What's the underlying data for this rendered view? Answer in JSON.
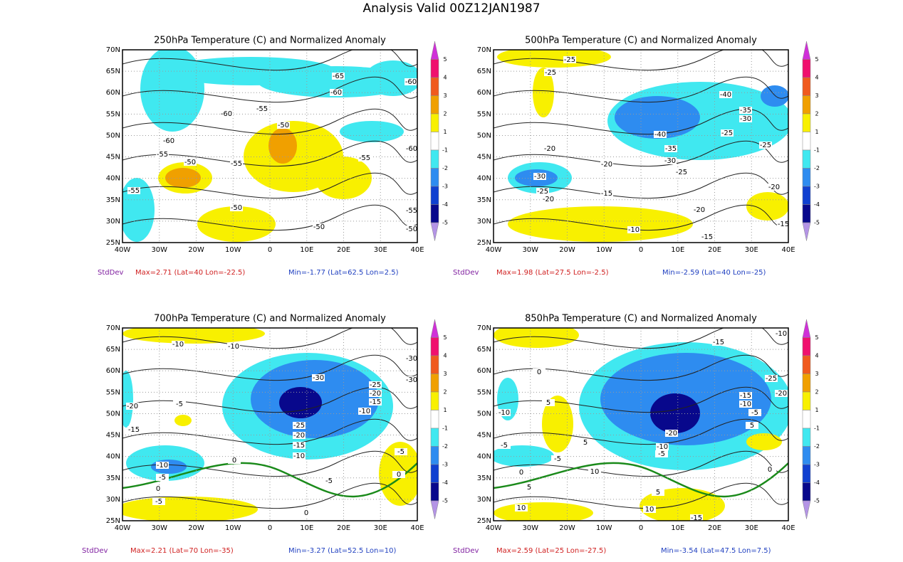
{
  "title": "Analysis Valid 00Z12JAN1987",
  "lat_labels": [
    "70N",
    "65N",
    "60N",
    "55N",
    "50N",
    "45N",
    "40N",
    "35N",
    "30N",
    "25N"
  ],
  "lon_labels": [
    "40W",
    "30W",
    "20W",
    "10W",
    "0",
    "10E",
    "20E",
    "30E",
    "40E"
  ],
  "colorbar": {
    "labels": [
      5,
      4,
      3,
      2,
      1,
      -1,
      -2,
      -3,
      -4,
      -5
    ],
    "colors": [
      "#d030d8",
      "#f0106e",
      "#f05a1e",
      "#f0a000",
      "#f8f000",
      "#ffffff",
      "#40e8f0",
      "#2e8cf0",
      "#1040d0",
      "#08088c",
      "#b494e6"
    ]
  },
  "panels": [
    {
      "title": "250hPa Temperature (C) and Normalized Anomaly",
      "stat_label": "StdDev",
      "max": "Max=2.71 (Lat=40 Lon=-22.5)",
      "min": "Min=-1.77 (Lat=62.5 Lon=2.5)",
      "contour_labels": [
        "-65",
        "-60",
        "-60",
        "-60",
        "-55",
        "-50",
        "-60",
        "-55",
        "-50",
        "-55",
        "-55",
        "-60",
        "-55",
        "-50",
        "-50",
        "-55",
        "-50"
      ]
    },
    {
      "title": "500hPa Temperature (C) and Normalized Anomaly",
      "stat_label": "StdDev",
      "max": "Max=1.98 (Lat=27.5 Lon=-2.5)",
      "min": "Min=-2.59 (Lat=40 Lon=-25)",
      "contour_labels": [
        "-25",
        "-25",
        "-40",
        "-35",
        "-30",
        "-40",
        "-25",
        "-20",
        "-35",
        "-25",
        "-30",
        "-20",
        "-25",
        "-30",
        "-25",
        "-15",
        "-20",
        "-20",
        "-20",
        "-10",
        "-15",
        "-15"
      ]
    },
    {
      "title": "700hPa Temperature (C) and Normalized Anomaly",
      "stat_label": "StdDev",
      "max": "Max=2.21 (Lat=70 Lon=-35)",
      "min": "Min=-3.27 (Lat=52.5 Lon=10)",
      "contour_labels": [
        "-10",
        "-10",
        "-30",
        "-30",
        "-30",
        "-25",
        "-20",
        "-15",
        "-20",
        "-5",
        "-10",
        "-25",
        "-20",
        "-15",
        "-15",
        "-10",
        "-5",
        "-10",
        "-5",
        "0",
        "0",
        "-5",
        "0",
        "-5",
        "0"
      ]
    },
    {
      "title": "850hPa Temperature (C) and Normalized Anomaly",
      "stat_label": "StdDev",
      "max": "Max=2.59 (Lat=25 Lon=-27.5)",
      "min": "Min=-3.54 (Lat=47.5 Lon=7.5)",
      "contour_labels": [
        "-10",
        "-15",
        "0",
        "-25",
        "-20",
        "-15",
        "-10",
        "5",
        "-10",
        "-5",
        "5",
        "-20",
        "-10",
        "-5",
        "-5",
        "5",
        "-5",
        "0",
        "10",
        "0",
        "5",
        "5",
        "10",
        "10",
        "-15"
      ]
    }
  ]
}
